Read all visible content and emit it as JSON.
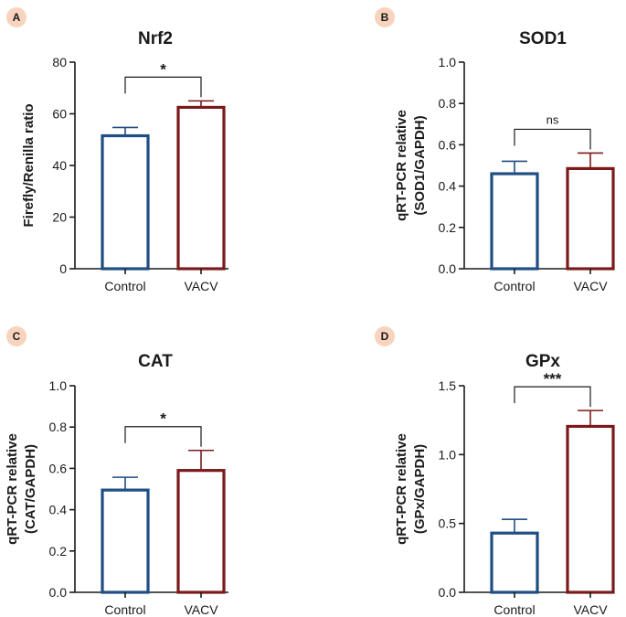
{
  "chart_data": [
    {
      "panel": "A",
      "type": "bar",
      "title": "Nrf2",
      "ylabel": [
        "Firefly/Renilla ratio"
      ],
      "categories": [
        "Control",
        "VACV"
      ],
      "values": [
        51.5,
        62.5
      ],
      "errors": [
        3.2,
        2.5
      ],
      "ylim": [
        0,
        80
      ],
      "yticks": [
        "0",
        "20",
        "40",
        "60",
        "80"
      ],
      "significance": "*"
    },
    {
      "panel": "B",
      "type": "bar",
      "title": "SOD1",
      "ylabel": [
        "qRT-PCR relative",
        "(SOD1/GAPDH)"
      ],
      "categories": [
        "Control",
        "VACV"
      ],
      "values": [
        0.46,
        0.485
      ],
      "errors": [
        0.06,
        0.075
      ],
      "ylim": [
        0,
        1.0
      ],
      "yticks": [
        "0.0",
        "0.2",
        "0.4",
        "0.6",
        "0.8",
        "1.0"
      ],
      "significance": "ns"
    },
    {
      "panel": "C",
      "type": "bar",
      "title": "CAT",
      "ylabel": [
        "qRT-PCR relative",
        "(CAT/GAPDH)"
      ],
      "categories": [
        "Control",
        "VACV"
      ],
      "values": [
        0.495,
        0.59
      ],
      "errors": [
        0.062,
        0.097
      ],
      "ylim": [
        0,
        1.0
      ],
      "yticks": [
        "0.0",
        "0.2",
        "0.4",
        "0.6",
        "0.8",
        "1.0"
      ],
      "significance": "*"
    },
    {
      "panel": "D",
      "type": "bar",
      "title": "GPx",
      "ylabel": [
        "qRT-PCR relative",
        "(GPx/GAPDH)"
      ],
      "categories": [
        "Control",
        "VACV"
      ],
      "values": [
        0.43,
        1.205
      ],
      "errors": [
        0.1,
        0.115
      ],
      "ylim": [
        0,
        1.5
      ],
      "yticks": [
        "0.0",
        "0.5",
        "1.0",
        "1.5"
      ],
      "significance": "***"
    }
  ],
  "colors": {
    "control": "#1f4e84",
    "vacv": "#7b1a1a",
    "badge_bg": "#f8d3bd",
    "axis": "#1a1a1a"
  }
}
